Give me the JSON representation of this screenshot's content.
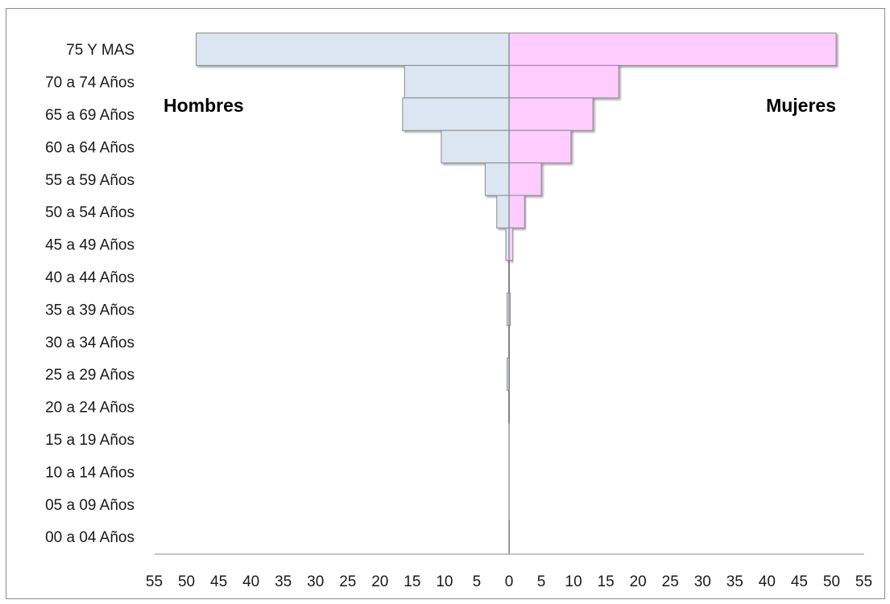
{
  "chart_data": {
    "type": "bar",
    "orientation": "horizontal",
    "layout": "population-pyramid",
    "categories": [
      "75 Y MAS",
      "70 a 74 Años",
      "65 a 69 Años",
      "60 a 64 Años",
      "55 a 59 Años",
      "50 a 54 Años",
      "45 a 49 Años",
      "40 a 44 Años",
      "35 a 39 Años",
      "30 a 34 Años",
      "25 a 29 Años",
      "20 a 24 Años",
      "15 a 19 Años",
      "10 a 14 Años",
      "05 a 09 Años",
      "00 a 04 Años"
    ],
    "series": [
      {
        "name": "Hombres",
        "side": "left",
        "color": "#dce6f2",
        "values": [
          48.5,
          16.2,
          16.5,
          10.5,
          3.7,
          1.9,
          0.5,
          0.1,
          0.3,
          0.1,
          0.3,
          0.1,
          0.0,
          0.0,
          0.0,
          0.0
        ]
      },
      {
        "name": "Mujeres",
        "side": "right",
        "color": "#ffccff",
        "values": [
          50.7,
          17.0,
          13.0,
          9.6,
          5.0,
          2.4,
          0.6,
          0.1,
          0.2,
          0.1,
          0.1,
          0.1,
          0.0,
          0.0,
          0.0,
          0.1
        ]
      }
    ],
    "x_ticks": [
      "55",
      "50",
      "45",
      "40",
      "35",
      "30",
      "25",
      "20",
      "15",
      "10",
      "5",
      "0",
      "5",
      "10",
      "15",
      "20",
      "25",
      "30",
      "35",
      "40",
      "45",
      "50",
      "55"
    ],
    "xlim": [
      -55,
      55
    ],
    "axis_color": "#8c8c8c",
    "center_line_color": "#808080",
    "grid": false,
    "title": "",
    "xlabel": "",
    "ylabel": ""
  }
}
